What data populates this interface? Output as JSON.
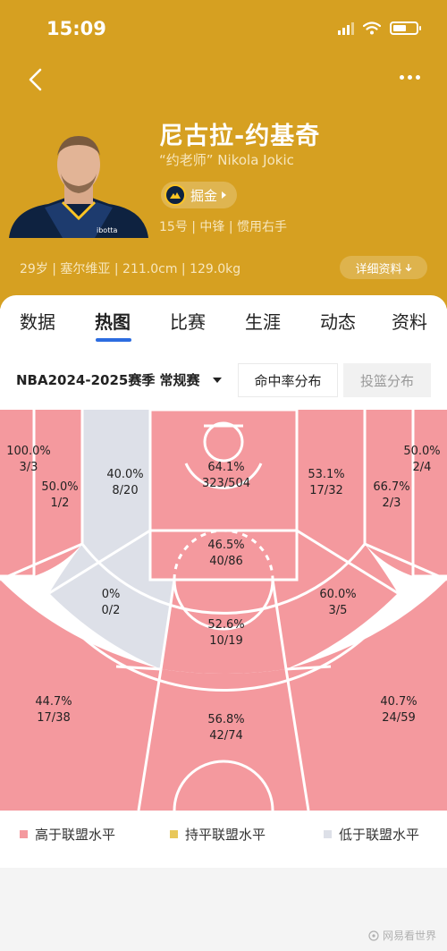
{
  "status_bar": {
    "time": "15:09"
  },
  "player": {
    "name": "尼古拉-约基奇",
    "nickname": "“约老师” Nikola Jokic",
    "team": "掘金",
    "meta": "15号 | 中锋 | 惯用右手",
    "body_stats": "29岁 | 塞尔维亚 | 211.0cm | 129.0kg",
    "detail_label": "详细资料",
    "jersey_sponsor": "ibotta"
  },
  "tabs": [
    {
      "label": "数据"
    },
    {
      "label": "热图",
      "active": true
    },
    {
      "label": "比赛"
    },
    {
      "label": "生涯"
    },
    {
      "label": "动态"
    },
    {
      "label": "资料"
    }
  ],
  "filter": {
    "season": "NBA2024-2025赛季 常规赛",
    "options": [
      "命中率分布",
      "投篮分布"
    ],
    "selected": "命中率分布"
  },
  "zones": [
    {
      "pct": "100.0%",
      "made_att": "3/3",
      "level": "above"
    },
    {
      "pct": "50.0%",
      "made_att": "1/2",
      "level": "above"
    },
    {
      "pct": "40.0%",
      "made_att": "8/20",
      "level": "below"
    },
    {
      "pct": "64.1%",
      "made_att": "323/504",
      "level": "above"
    },
    {
      "pct": "53.1%",
      "made_att": "17/32",
      "level": "above"
    },
    {
      "pct": "66.7%",
      "made_att": "2/3",
      "level": "above"
    },
    {
      "pct": "50.0%",
      "made_att": "2/4",
      "level": "above"
    },
    {
      "pct": "46.5%",
      "made_att": "40/86",
      "level": "above"
    },
    {
      "pct": "0%",
      "made_att": "0/2",
      "level": "below"
    },
    {
      "pct": "60.0%",
      "made_att": "3/5",
      "level": "above"
    },
    {
      "pct": "52.6%",
      "made_att": "10/19",
      "level": "above"
    },
    {
      "pct": "44.7%",
      "made_att": "17/38",
      "level": "above"
    },
    {
      "pct": "56.8%",
      "made_att": "42/74",
      "level": "above"
    },
    {
      "pct": "40.7%",
      "made_att": "24/59",
      "level": "above"
    }
  ],
  "legend": [
    {
      "label": "高于联盟水平",
      "color": "#f4999e"
    },
    {
      "label": "持平联盟水平",
      "color": "#e8c75a"
    },
    {
      "label": "低于联盟水平",
      "color": "#dde0e8"
    }
  ],
  "colors": {
    "header_bg": "#d6a021",
    "above": "#f4999e",
    "below": "#dde0e8",
    "accent": "#2c6ce0"
  },
  "watermark": "网易看世界"
}
